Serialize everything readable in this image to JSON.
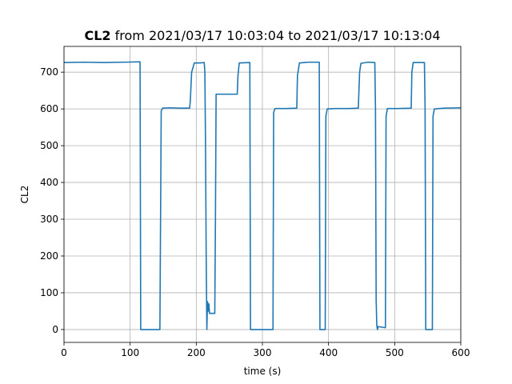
{
  "chart_data": {
    "type": "line",
    "title_bold": "CL2",
    "title_rest": " from 2021/03/17 10:03:04 to 2021/03/17 10:13:04",
    "xlabel": "time (s)",
    "ylabel": "CL2",
    "xlim": [
      0,
      600
    ],
    "ylim": [
      -35,
      770
    ],
    "xticks": [
      0,
      100,
      200,
      300,
      400,
      500,
      600
    ],
    "yticks": [
      0,
      100,
      200,
      300,
      400,
      500,
      600,
      700
    ],
    "grid": true,
    "line_color": "#1f77b4",
    "series": [
      {
        "points": [
          [
            0,
            726
          ],
          [
            30,
            727
          ],
          [
            60,
            726
          ],
          [
            90,
            727
          ],
          [
            113,
            728
          ],
          [
            115,
            728
          ],
          [
            116,
            0
          ],
          [
            145,
            0
          ],
          [
            147,
            595
          ],
          [
            149,
            602
          ],
          [
            160,
            603
          ],
          [
            175,
            602
          ],
          [
            190,
            602
          ],
          [
            191,
            622
          ],
          [
            193,
            700
          ],
          [
            195,
            712
          ],
          [
            197,
            725
          ],
          [
            205,
            725
          ],
          [
            212,
            726
          ],
          [
            213,
            700
          ],
          [
            214,
            500
          ],
          [
            215,
            200
          ],
          [
            216,
            0
          ],
          [
            217,
            76
          ],
          [
            218,
            50
          ],
          [
            219,
            70
          ],
          [
            220,
            44
          ],
          [
            228,
            44
          ],
          [
            229,
            300
          ],
          [
            230,
            640
          ],
          [
            245,
            640
          ],
          [
            262,
            640
          ],
          [
            263,
            690
          ],
          [
            265,
            725
          ],
          [
            280,
            726
          ],
          [
            281,
            726
          ],
          [
            282,
            0
          ],
          [
            300,
            0
          ],
          [
            316,
            0
          ],
          [
            317,
            590
          ],
          [
            319,
            601
          ],
          [
            335,
            601
          ],
          [
            352,
            602
          ],
          [
            353,
            690
          ],
          [
            356,
            725
          ],
          [
            370,
            727
          ],
          [
            386,
            727
          ],
          [
            387,
            0
          ],
          [
            395,
            0
          ],
          [
            396,
            580
          ],
          [
            398,
            600
          ],
          [
            410,
            601
          ],
          [
            430,
            601
          ],
          [
            445,
            602
          ],
          [
            447,
            700
          ],
          [
            449,
            724
          ],
          [
            460,
            727
          ],
          [
            470,
            726
          ],
          [
            471,
            600
          ],
          [
            472,
            80
          ],
          [
            473,
            10
          ],
          [
            474,
            0
          ],
          [
            475,
            8
          ],
          [
            486,
            5
          ],
          [
            487,
            580
          ],
          [
            489,
            601
          ],
          [
            505,
            601
          ],
          [
            525,
            602
          ],
          [
            526,
            700
          ],
          [
            528,
            726
          ],
          [
            545,
            726
          ],
          [
            546,
            600
          ],
          [
            547,
            0
          ],
          [
            557,
            0
          ],
          [
            558,
            580
          ],
          [
            560,
            600
          ],
          [
            575,
            602
          ],
          [
            600,
            603
          ]
        ]
      }
    ]
  }
}
